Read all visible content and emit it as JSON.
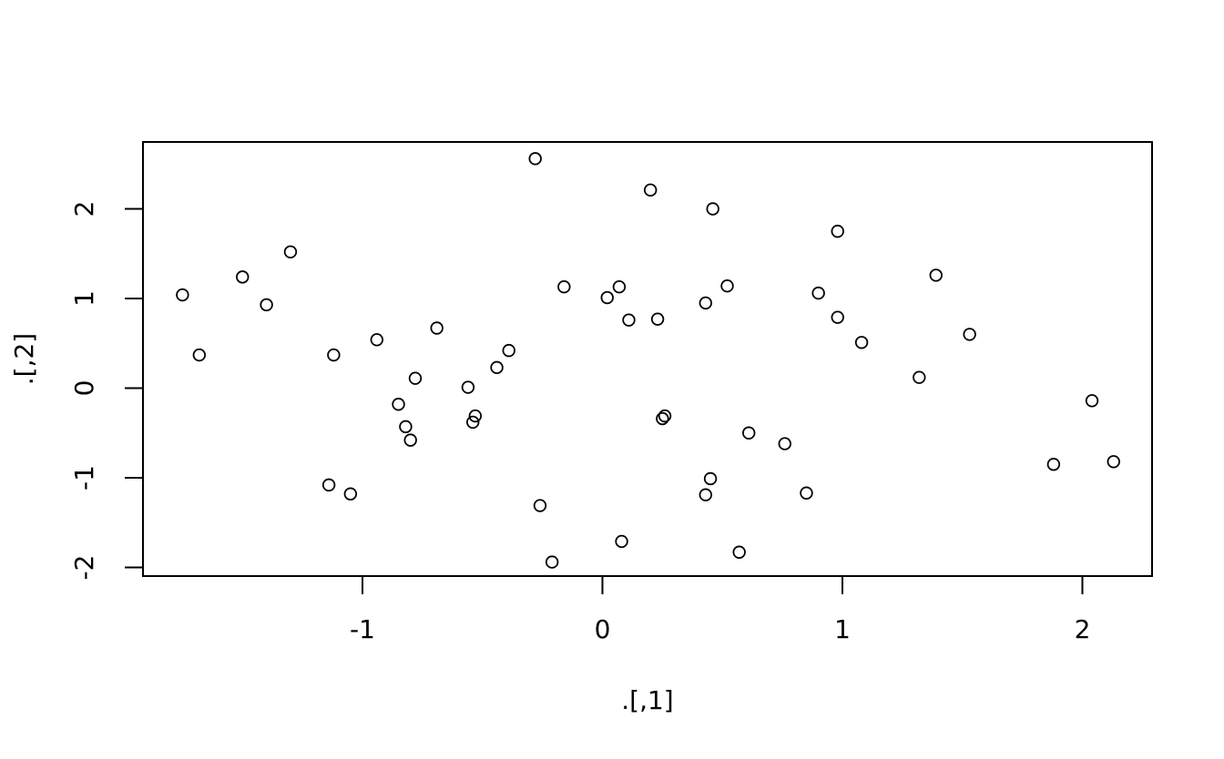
{
  "figure": {
    "background_color": "#ffffff",
    "stroke_color": "#000000"
  },
  "chart_data": {
    "type": "scatter",
    "title": "",
    "xlabel": ".[,1]",
    "ylabel": ".[,2]",
    "marker": "open-circle",
    "marker_color": "#000000",
    "grid": false,
    "legend": null,
    "xlim": [
      -1.91,
      2.29
    ],
    "ylim": [
      -2.1,
      2.75
    ],
    "x_ticks": [
      -1,
      0,
      1,
      2
    ],
    "y_ticks": [
      -2,
      -1,
      0,
      1,
      2
    ],
    "points": [
      [
        -1.75,
        1.04
      ],
      [
        -1.68,
        0.37
      ],
      [
        -1.5,
        1.24
      ],
      [
        -1.4,
        0.93
      ],
      [
        -1.3,
        1.52
      ],
      [
        -1.14,
        -1.08
      ],
      [
        -1.12,
        0.37
      ],
      [
        -1.05,
        -1.18
      ],
      [
        -0.94,
        0.54
      ],
      [
        -0.85,
        -0.18
      ],
      [
        -0.82,
        -0.43
      ],
      [
        -0.8,
        -0.58
      ],
      [
        -0.78,
        0.11
      ],
      [
        -0.69,
        0.67
      ],
      [
        -0.56,
        0.01
      ],
      [
        -0.54,
        -0.38
      ],
      [
        -0.53,
        -0.31
      ],
      [
        -0.44,
        0.23
      ],
      [
        -0.39,
        0.42
      ],
      [
        -0.28,
        2.56
      ],
      [
        -0.26,
        -1.31
      ],
      [
        -0.21,
        -1.94
      ],
      [
        -0.16,
        1.13
      ],
      [
        0.02,
        1.01
      ],
      [
        0.07,
        1.13
      ],
      [
        0.08,
        -1.71
      ],
      [
        0.11,
        0.76
      ],
      [
        0.2,
        2.21
      ],
      [
        0.23,
        0.77
      ],
      [
        0.25,
        -0.34
      ],
      [
        0.26,
        -0.31
      ],
      [
        0.43,
        -1.19
      ],
      [
        0.43,
        0.95
      ],
      [
        0.45,
        -1.01
      ],
      [
        0.46,
        2.0
      ],
      [
        0.52,
        1.14
      ],
      [
        0.57,
        -1.83
      ],
      [
        0.61,
        -0.5
      ],
      [
        0.76,
        -0.62
      ],
      [
        0.85,
        -1.17
      ],
      [
        0.9,
        1.06
      ],
      [
        0.98,
        1.75
      ],
      [
        0.98,
        0.79
      ],
      [
        1.08,
        0.51
      ],
      [
        1.32,
        0.12
      ],
      [
        1.39,
        1.26
      ],
      [
        1.53,
        0.6
      ],
      [
        1.88,
        -0.85
      ],
      [
        2.04,
        -0.14
      ],
      [
        2.13,
        -0.82
      ]
    ]
  }
}
